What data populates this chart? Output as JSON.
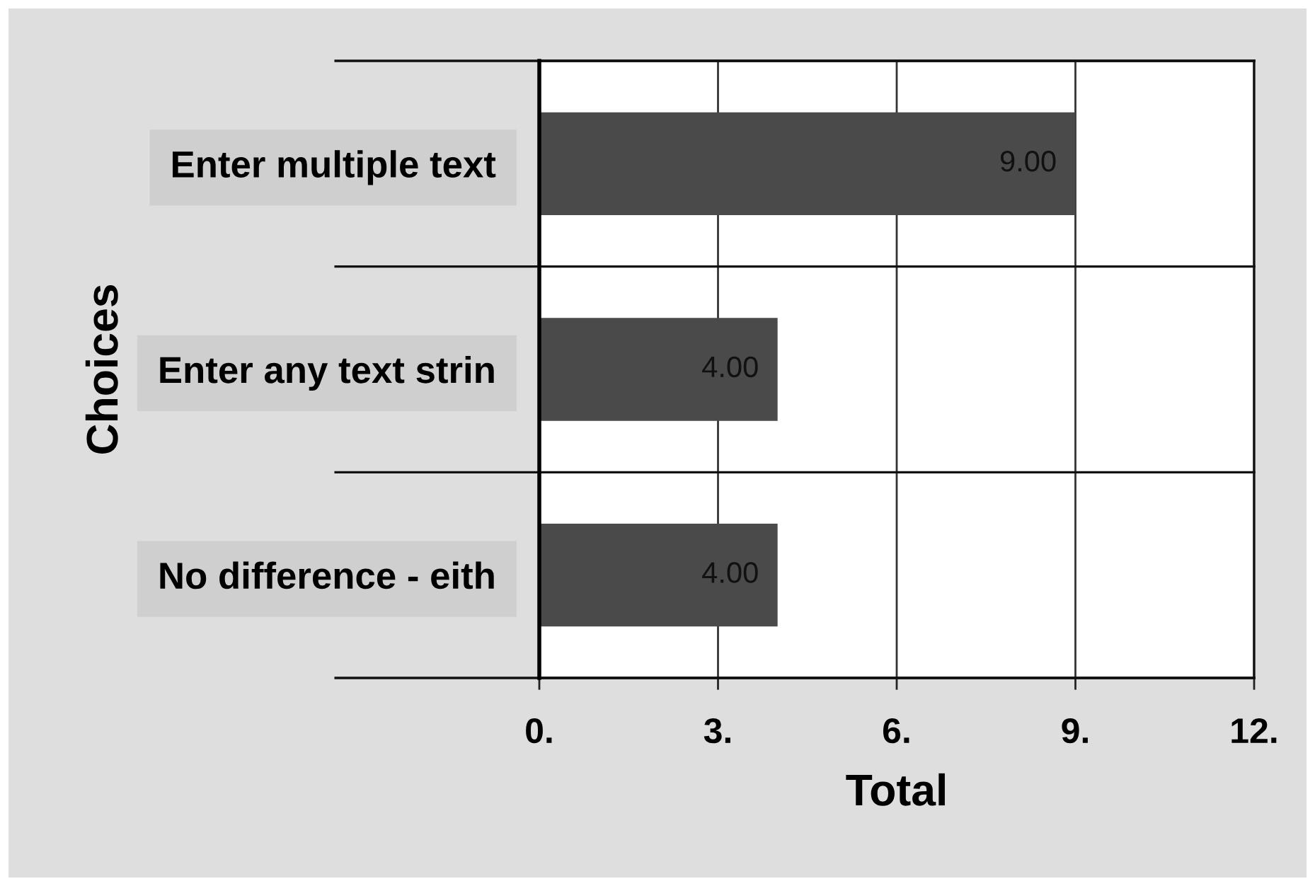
{
  "chart_data": {
    "type": "bar",
    "orientation": "horizontal",
    "categories": [
      "Enter multiple text",
      "Enter any text strin",
      "No difference - eith"
    ],
    "values": [
      9,
      4,
      4
    ],
    "color": "#4a4a4a",
    "value_labels": [
      "9.00",
      "4.00",
      "4.00"
    ],
    "xlim": [
      0,
      12
    ],
    "xticks": [
      {
        "value": 0,
        "label": "0."
      },
      {
        "value": 3,
        "label": "3."
      },
      {
        "value": 6,
        "label": "6."
      },
      {
        "value": 9,
        "label": "9."
      },
      {
        "value": 12,
        "label": "12."
      }
    ],
    "xlabel": "Total",
    "ylabel": "Choices",
    "grid": true
  }
}
